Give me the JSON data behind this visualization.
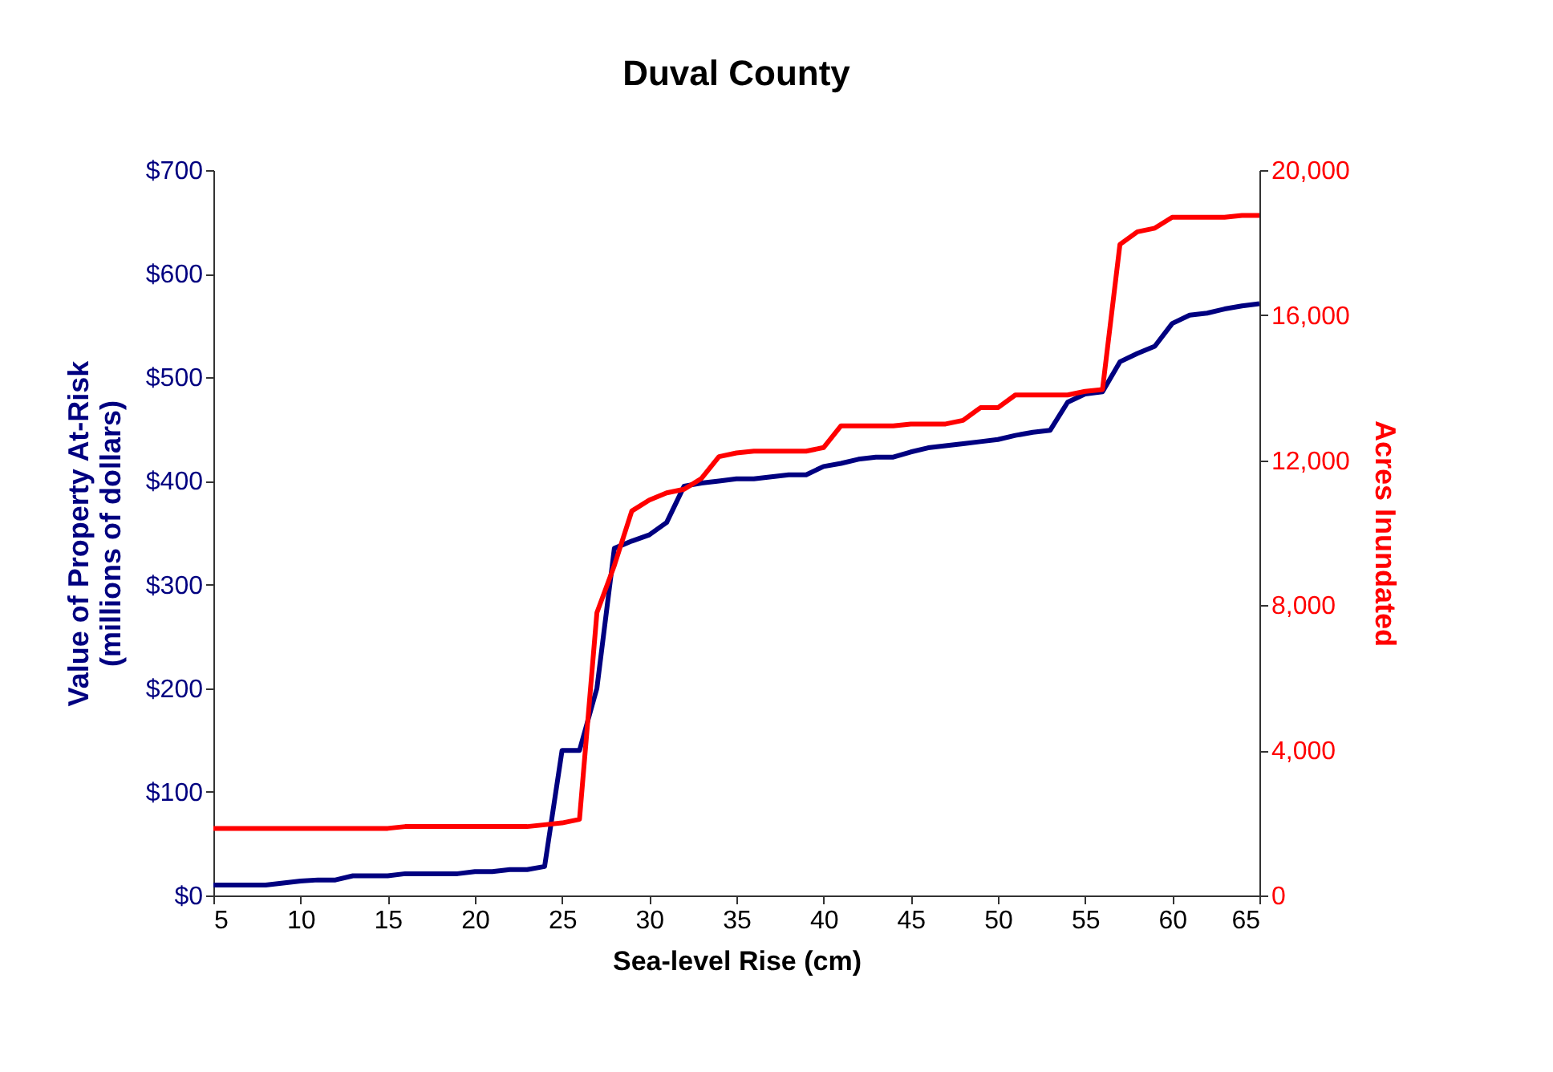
{
  "chart_data": {
    "type": "line",
    "title": "Duval County",
    "xlabel": "Sea-level Rise (cm)",
    "ylabel": "Value of Property At-Risk\n(millions of dollars)",
    "y2label": "Acres Inundated",
    "x": [
      5,
      6,
      7,
      8,
      9,
      10,
      11,
      12,
      13,
      14,
      15,
      16,
      17,
      18,
      19,
      20,
      21,
      22,
      23,
      24,
      25,
      26,
      27,
      28,
      29,
      30,
      31,
      32,
      33,
      34,
      35,
      36,
      37,
      38,
      39,
      40,
      41,
      42,
      43,
      44,
      45,
      46,
      47,
      48,
      49,
      50,
      51,
      52,
      53,
      54,
      55,
      56,
      57,
      58,
      59,
      60,
      61,
      62,
      63,
      64,
      65
    ],
    "series": [
      {
        "color": "#000080",
        "values": [
          10,
          10,
          10,
          10,
          12,
          14,
          15,
          15,
          19,
          19,
          19,
          21,
          21,
          21,
          21,
          23,
          23,
          25,
          25,
          28,
          140,
          140,
          200,
          335,
          342,
          348,
          360,
          395,
          398,
          400,
          402,
          402,
          404,
          406,
          406,
          414,
          417,
          421,
          423,
          423,
          428,
          432,
          434,
          436,
          438,
          440,
          444,
          447,
          449,
          476,
          484,
          486,
          515,
          523,
          530,
          552,
          560,
          562,
          566,
          569,
          571
        ]
      },
      {
        "color": "#ff0000",
        "axis": "y2",
        "values": [
          1850,
          1850,
          1850,
          1850,
          1850,
          1850,
          1850,
          1850,
          1850,
          1850,
          1850,
          1900,
          1900,
          1900,
          1900,
          1900,
          1900,
          1900,
          1900,
          1950,
          2000,
          2100,
          7800,
          9100,
          10600,
          10900,
          11100,
          11200,
          11500,
          12100,
          12200,
          12250,
          12250,
          12250,
          12250,
          12350,
          12950,
          12950,
          12950,
          12950,
          13000,
          13000,
          13000,
          13100,
          13450,
          13450,
          13800,
          13800,
          13800,
          13800,
          13900,
          13950,
          17950,
          18300,
          18400,
          18700,
          18700,
          18700,
          18700,
          18750,
          18750
        ]
      }
    ],
    "xlim": [
      5,
      65
    ],
    "xticks": [
      5,
      10,
      15,
      20,
      25,
      30,
      35,
      40,
      45,
      50,
      55,
      60,
      65
    ],
    "ylim": [
      0,
      700
    ],
    "yticks": [
      {
        "value": 0,
        "label": "$0"
      },
      {
        "value": 100,
        "label": "$100"
      },
      {
        "value": 200,
        "label": "$200"
      },
      {
        "value": 300,
        "label": "$300"
      },
      {
        "value": 400,
        "label": "$400"
      },
      {
        "value": 500,
        "label": "$500"
      },
      {
        "value": 600,
        "label": "$600"
      },
      {
        "value": 700,
        "label": "$700"
      }
    ],
    "y2lim": [
      0,
      20000
    ],
    "y2ticks": [
      0,
      {
        "value": 4000,
        "label": "4,000"
      },
      {
        "value": 8000,
        "label": "8,000"
      },
      {
        "value": 12000,
        "label": "12,000"
      },
      {
        "value": 16000,
        "label": "16,000"
      },
      {
        "value": 20000,
        "label": "20,000"
      }
    ],
    "grid": false,
    "legend": false
  }
}
